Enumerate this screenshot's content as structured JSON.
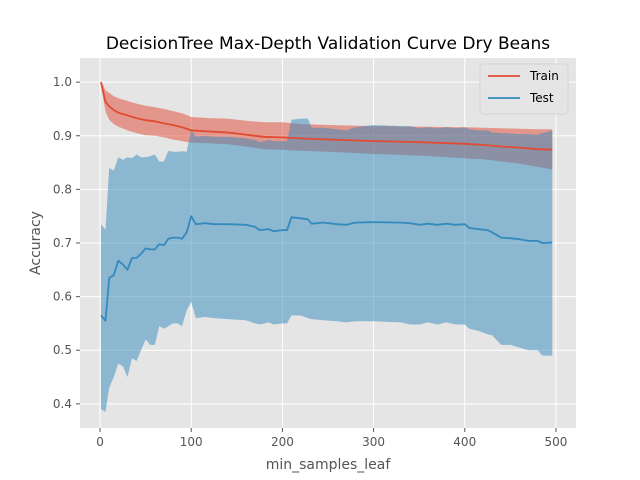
{
  "chart_data": {
    "type": "line",
    "title": "DecisionTree Max-Depth Validation Curve Dry Beans",
    "xlabel": "min_samples_leaf",
    "ylabel": "Accuracy",
    "xlim": [
      -22,
      522
    ],
    "ylim": [
      0.355,
      1.045
    ],
    "xticks": [
      0,
      100,
      200,
      300,
      400,
      500
    ],
    "yticks": [
      0.4,
      0.5,
      0.6,
      0.7,
      0.8,
      0.9,
      1.0
    ],
    "grid": true,
    "legend_position": "upper right",
    "colors": {
      "background": "#E5E5E5",
      "grid": "#FFFFFF",
      "train": "#E24A33",
      "test": "#348ABD"
    },
    "series": [
      {
        "name": "Train",
        "color": "#E24A33",
        "points": [
          [
            1,
            1.0
          ],
          [
            3,
            0.985
          ],
          [
            6,
            0.963
          ],
          [
            10,
            0.955
          ],
          [
            15,
            0.948
          ],
          [
            20,
            0.943
          ],
          [
            30,
            0.938
          ],
          [
            40,
            0.933
          ],
          [
            50,
            0.929
          ],
          [
            60,
            0.927
          ],
          [
            70,
            0.923
          ],
          [
            80,
            0.92
          ],
          [
            90,
            0.916
          ],
          [
            100,
            0.91
          ],
          [
            120,
            0.908
          ],
          [
            140,
            0.906
          ],
          [
            160,
            0.902
          ],
          [
            170,
            0.9
          ],
          [
            180,
            0.898
          ],
          [
            200,
            0.897
          ],
          [
            220,
            0.895
          ],
          [
            250,
            0.893
          ],
          [
            300,
            0.89
          ],
          [
            350,
            0.888
          ],
          [
            400,
            0.885
          ],
          [
            420,
            0.883
          ],
          [
            440,
            0.88
          ],
          [
            460,
            0.878
          ],
          [
            480,
            0.875
          ],
          [
            496,
            0.874
          ]
        ],
        "band": [
          [
            1,
            0.995,
            1.0
          ],
          [
            3,
            0.975,
            0.996
          ],
          [
            6,
            0.945,
            0.985
          ],
          [
            10,
            0.93,
            0.98
          ],
          [
            15,
            0.922,
            0.974
          ],
          [
            20,
            0.917,
            0.97
          ],
          [
            30,
            0.91,
            0.965
          ],
          [
            40,
            0.905,
            0.96
          ],
          [
            50,
            0.901,
            0.956
          ],
          [
            60,
            0.9,
            0.953
          ],
          [
            70,
            0.897,
            0.95
          ],
          [
            80,
            0.893,
            0.946
          ],
          [
            90,
            0.89,
            0.942
          ],
          [
            100,
            0.887,
            0.935
          ],
          [
            120,
            0.886,
            0.933
          ],
          [
            140,
            0.884,
            0.932
          ],
          [
            160,
            0.88,
            0.928
          ],
          [
            180,
            0.875,
            0.925
          ],
          [
            200,
            0.874,
            0.925
          ],
          [
            220,
            0.872,
            0.922
          ],
          [
            250,
            0.87,
            0.92
          ],
          [
            300,
            0.866,
            0.918
          ],
          [
            350,
            0.863,
            0.917
          ],
          [
            400,
            0.858,
            0.916
          ],
          [
            420,
            0.856,
            0.915
          ],
          [
            440,
            0.852,
            0.914
          ],
          [
            460,
            0.848,
            0.913
          ],
          [
            480,
            0.842,
            0.912
          ],
          [
            496,
            0.837,
            0.912
          ]
        ]
      },
      {
        "name": "Test",
        "color": "#348ABD",
        "points": [
          [
            1,
            0.565
          ],
          [
            6,
            0.555
          ],
          [
            10,
            0.635
          ],
          [
            15,
            0.64
          ],
          [
            20,
            0.667
          ],
          [
            25,
            0.66
          ],
          [
            30,
            0.65
          ],
          [
            35,
            0.672
          ],
          [
            40,
            0.672
          ],
          [
            45,
            0.68
          ],
          [
            50,
            0.69
          ],
          [
            55,
            0.688
          ],
          [
            60,
            0.688
          ],
          [
            65,
            0.698
          ],
          [
            70,
            0.696
          ],
          [
            75,
            0.708
          ],
          [
            80,
            0.71
          ],
          [
            85,
            0.71
          ],
          [
            90,
            0.708
          ],
          [
            95,
            0.72
          ],
          [
            100,
            0.75
          ],
          [
            105,
            0.735
          ],
          [
            115,
            0.737
          ],
          [
            125,
            0.735
          ],
          [
            140,
            0.735
          ],
          [
            160,
            0.734
          ],
          [
            170,
            0.73
          ],
          [
            175,
            0.724
          ],
          [
            185,
            0.726
          ],
          [
            190,
            0.722
          ],
          [
            200,
            0.724
          ],
          [
            205,
            0.724
          ],
          [
            210,
            0.748
          ],
          [
            220,
            0.746
          ],
          [
            228,
            0.744
          ],
          [
            232,
            0.736
          ],
          [
            245,
            0.738
          ],
          [
            260,
            0.735
          ],
          [
            270,
            0.734
          ],
          [
            280,
            0.738
          ],
          [
            300,
            0.739
          ],
          [
            330,
            0.738
          ],
          [
            340,
            0.737
          ],
          [
            350,
            0.734
          ],
          [
            360,
            0.736
          ],
          [
            370,
            0.734
          ],
          [
            380,
            0.736
          ],
          [
            390,
            0.734
          ],
          [
            400,
            0.735
          ],
          [
            405,
            0.728
          ],
          [
            415,
            0.726
          ],
          [
            425,
            0.724
          ],
          [
            430,
            0.72
          ],
          [
            440,
            0.71
          ],
          [
            450,
            0.709
          ],
          [
            460,
            0.707
          ],
          [
            470,
            0.704
          ],
          [
            480,
            0.704
          ],
          [
            485,
            0.7
          ],
          [
            496,
            0.701
          ]
        ],
        "band": [
          [
            1,
            0.39,
            0.735
          ],
          [
            6,
            0.385,
            0.725
          ],
          [
            10,
            0.43,
            0.84
          ],
          [
            15,
            0.45,
            0.835
          ],
          [
            20,
            0.475,
            0.86
          ],
          [
            25,
            0.47,
            0.855
          ],
          [
            30,
            0.45,
            0.86
          ],
          [
            35,
            0.485,
            0.858
          ],
          [
            40,
            0.48,
            0.865
          ],
          [
            45,
            0.5,
            0.86
          ],
          [
            50,
            0.52,
            0.86
          ],
          [
            55,
            0.51,
            0.862
          ],
          [
            60,
            0.51,
            0.865
          ],
          [
            65,
            0.545,
            0.852
          ],
          [
            70,
            0.54,
            0.852
          ],
          [
            75,
            0.545,
            0.872
          ],
          [
            80,
            0.55,
            0.87
          ],
          [
            85,
            0.55,
            0.87
          ],
          [
            90,
            0.545,
            0.871
          ],
          [
            95,
            0.575,
            0.87
          ],
          [
            100,
            0.59,
            0.91
          ],
          [
            105,
            0.56,
            0.898
          ],
          [
            115,
            0.562,
            0.9
          ],
          [
            125,
            0.56,
            0.898
          ],
          [
            140,
            0.558,
            0.898
          ],
          [
            160,
            0.556,
            0.895
          ],
          [
            170,
            0.55,
            0.892
          ],
          [
            175,
            0.548,
            0.888
          ],
          [
            185,
            0.552,
            0.892
          ],
          [
            190,
            0.548,
            0.89
          ],
          [
            200,
            0.55,
            0.89
          ],
          [
            205,
            0.55,
            0.89
          ],
          [
            210,
            0.565,
            0.93
          ],
          [
            220,
            0.565,
            0.932
          ],
          [
            228,
            0.56,
            0.932
          ],
          [
            232,
            0.558,
            0.915
          ],
          [
            245,
            0.556,
            0.915
          ],
          [
            260,
            0.554,
            0.912
          ],
          [
            270,
            0.552,
            0.91
          ],
          [
            280,
            0.554,
            0.916
          ],
          [
            300,
            0.554,
            0.92
          ],
          [
            330,
            0.552,
            0.918
          ],
          [
            340,
            0.548,
            0.918
          ],
          [
            350,
            0.548,
            0.914
          ],
          [
            360,
            0.552,
            0.916
          ],
          [
            370,
            0.548,
            0.914
          ],
          [
            380,
            0.552,
            0.916
          ],
          [
            390,
            0.548,
            0.914
          ],
          [
            400,
            0.548,
            0.916
          ],
          [
            405,
            0.54,
            0.912
          ],
          [
            415,
            0.536,
            0.91
          ],
          [
            425,
            0.53,
            0.91
          ],
          [
            430,
            0.528,
            0.906
          ],
          [
            440,
            0.51,
            0.905
          ],
          [
            450,
            0.51,
            0.904
          ],
          [
            460,
            0.505,
            0.903
          ],
          [
            470,
            0.5,
            0.903
          ],
          [
            480,
            0.5,
            0.902
          ],
          [
            485,
            0.49,
            0.905
          ],
          [
            496,
            0.49,
            0.91
          ]
        ]
      }
    ]
  }
}
